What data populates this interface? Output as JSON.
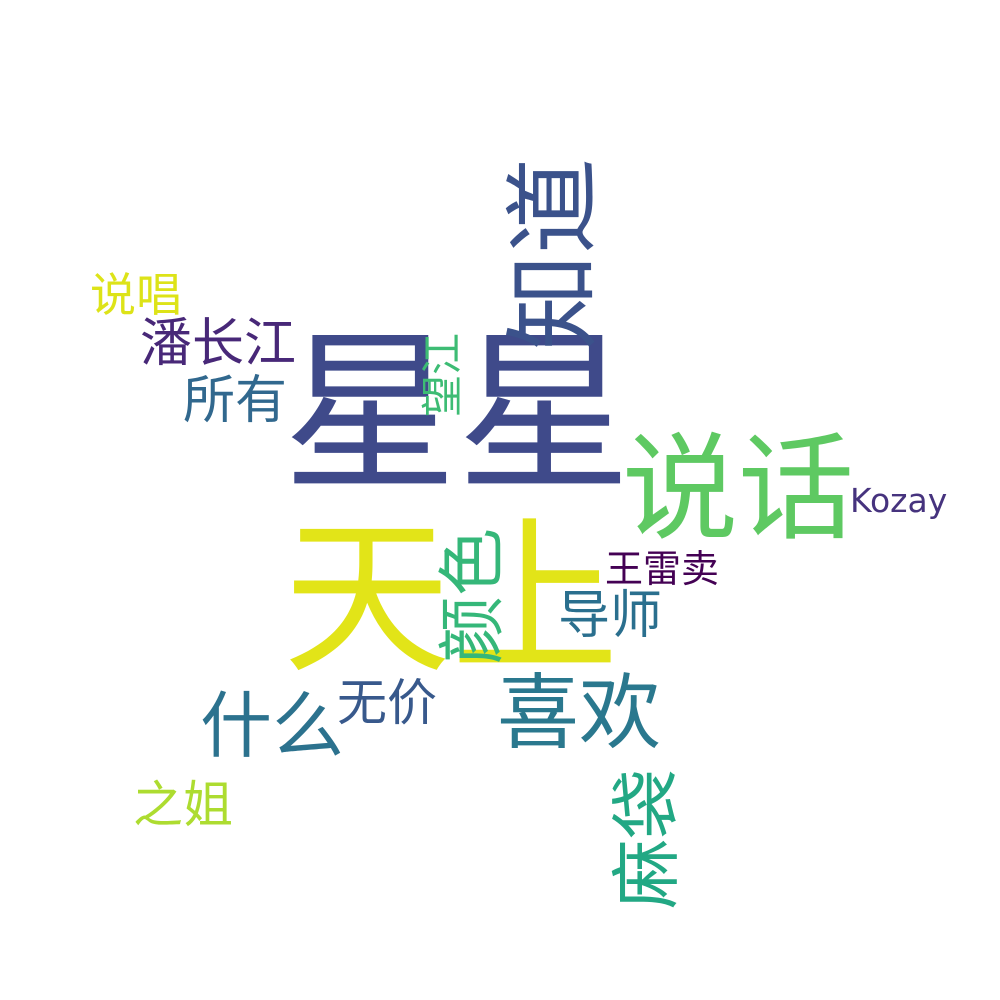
{
  "words": [
    {
      "id": "xingxing",
      "text": "星星",
      "weight": 1.0,
      "color": "#3f4a8a",
      "orientation": "horizontal"
    },
    {
      "id": "tianshang",
      "text": "天上",
      "weight": 0.98,
      "color": "#e2e418",
      "orientation": "horizontal"
    },
    {
      "id": "shuohua",
      "text": "说话",
      "weight": 0.62,
      "color": "#5ec962",
      "orientation": "horizontal"
    },
    {
      "id": "zhidao",
      "text": "知道",
      "weight": 0.6,
      "color": "#3b528b",
      "orientation": "vertical"
    },
    {
      "id": "xihuan",
      "text": "喜欢",
      "weight": 0.46,
      "color": "#2a788e",
      "orientation": "horizontal"
    },
    {
      "id": "yanse",
      "text": "颜色",
      "weight": 0.4,
      "color": "#35b779",
      "orientation": "vertical"
    },
    {
      "id": "mabao",
      "text": "麻袋",
      "weight": 0.4,
      "color": "#22a884",
      "orientation": "vertical"
    },
    {
      "id": "shenme",
      "text": "什么",
      "weight": 0.4,
      "color": "#2c728e",
      "orientation": "horizontal"
    },
    {
      "id": "panchangjiang",
      "text": "潘长江",
      "weight": 0.3,
      "color": "#482878",
      "orientation": "horizontal"
    },
    {
      "id": "suoyou",
      "text": "所有",
      "weight": 0.3,
      "color": "#31688e",
      "orientation": "horizontal"
    },
    {
      "id": "wujia",
      "text": "无价",
      "weight": 0.3,
      "color": "#38598c",
      "orientation": "horizontal"
    },
    {
      "id": "daoshi",
      "text": "导师",
      "weight": 0.3,
      "color": "#2a6f8e",
      "orientation": "horizontal"
    },
    {
      "id": "zhijie",
      "text": "之姐",
      "weight": 0.3,
      "color": "#addc30",
      "orientation": "horizontal"
    },
    {
      "id": "shuochang",
      "text": "说唱",
      "weight": 0.27,
      "color": "#dde318",
      "orientation": "horizontal"
    },
    {
      "id": "wangjiang",
      "text": "望江",
      "weight": 0.25,
      "color": "#3dbc74",
      "orientation": "vertical"
    },
    {
      "id": "wangleimai",
      "text": "王雷卖",
      "weight": 0.25,
      "color": "#440154",
      "orientation": "horizontal"
    },
    {
      "id": "kozay",
      "text": "Kozay",
      "weight": 0.25,
      "color": "#46337e",
      "orientation": "horizontal"
    }
  ]
}
